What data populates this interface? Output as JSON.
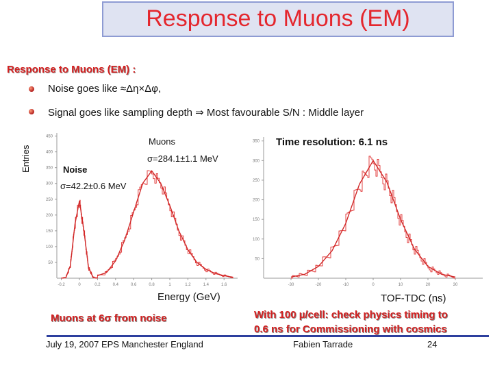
{
  "title": "Response to Muons (EM)",
  "subheading": "Response to Muons (EM) :",
  "bullets": [
    "Noise goes like ≈Δη×Δφ,",
    "Signal goes like sampling depth   ⇒ Most favourable S/N : Middle layer"
  ],
  "colors": {
    "title": "#e4262d",
    "title_bg": "#dfe3f2",
    "title_border": "#8e9bd3",
    "accent_red": "#d42020",
    "footer_line": "#2d3f9e",
    "curve": "#e03030"
  },
  "icons": {
    "bullet": "red-sphere-bullet-icon"
  },
  "left_plot": {
    "ylabel": "Entries",
    "muons_label": "Muons",
    "muons_sigma": "σ=284.1±1.1 MeV",
    "noise_label": "Noise",
    "noise_sigma": "σ=42.2±0.6 MeV",
    "xlabel": "Energy (GeV)",
    "caption": "Muons at 6σ from noise"
  },
  "right_plot": {
    "annotation": "Time resolution: 6.1 ns",
    "xlabel": "TOF-TDC (ns)",
    "caption_line1": "With 100 µ/cell: check physics timing to",
    "caption_line2": "0.6 ns for Commissioning with cosmics"
  },
  "footer": {
    "conference": "July 19, 2007  EPS Manchester England",
    "author": "Fabien Tarrade",
    "page": "24"
  },
  "chart_data": [
    {
      "type": "line",
      "ylabel": "Entries",
      "xlabel": "Energy (GeV)",
      "xlim": [
        -0.25,
        1.75
      ],
      "ylim": [
        0,
        460
      ],
      "x_ticks": [
        "-0.2",
        "0",
        "0.2",
        "0.4",
        "0.6",
        "0.8",
        "1",
        "1.2",
        "1.4",
        "1.6"
      ],
      "y_ticks": [
        "50",
        "100",
        "150",
        "200",
        "250",
        "300",
        "350",
        "400",
        "450"
      ],
      "series": [
        {
          "name": "Noise",
          "x": [
            -0.2,
            -0.15,
            -0.1,
            -0.05,
            0,
            0.05,
            0.1,
            0.15,
            0.2
          ],
          "y": [
            0,
            2,
            40,
            170,
            245,
            150,
            35,
            3,
            0
          ]
        },
        {
          "name": "Muons",
          "x": [
            0.2,
            0.3,
            0.4,
            0.5,
            0.6,
            0.7,
            0.8,
            0.9,
            1.0,
            1.1,
            1.2,
            1.3,
            1.4,
            1.5,
            1.6,
            1.7
          ],
          "y": [
            8,
            18,
            55,
            120,
            210,
            300,
            340,
            300,
            230,
            150,
            90,
            50,
            28,
            15,
            8,
            3
          ]
        }
      ],
      "annotations": [
        "σ=284.1±1.1 MeV",
        "σ=42.2±0.6 MeV"
      ]
    },
    {
      "type": "line",
      "xlabel": "TOF-TDC (ns)",
      "xlim": [
        -40,
        40
      ],
      "ylim": [
        0,
        360
      ],
      "x_ticks": [
        "-30",
        "-20",
        "-10",
        "0",
        "10",
        "20",
        "30"
      ],
      "y_ticks": [
        "50",
        "100",
        "150",
        "200",
        "250",
        "300",
        "350"
      ],
      "series": [
        {
          "x": [
            -30,
            -25,
            -20,
            -15,
            -10,
            -5,
            0,
            5,
            10,
            15,
            20,
            25,
            30
          ],
          "y": [
            3,
            10,
            30,
            70,
            140,
            240,
            300,
            245,
            150,
            75,
            30,
            10,
            3
          ]
        }
      ],
      "annotations": [
        "Time resolution: 6.1 ns"
      ]
    }
  ]
}
